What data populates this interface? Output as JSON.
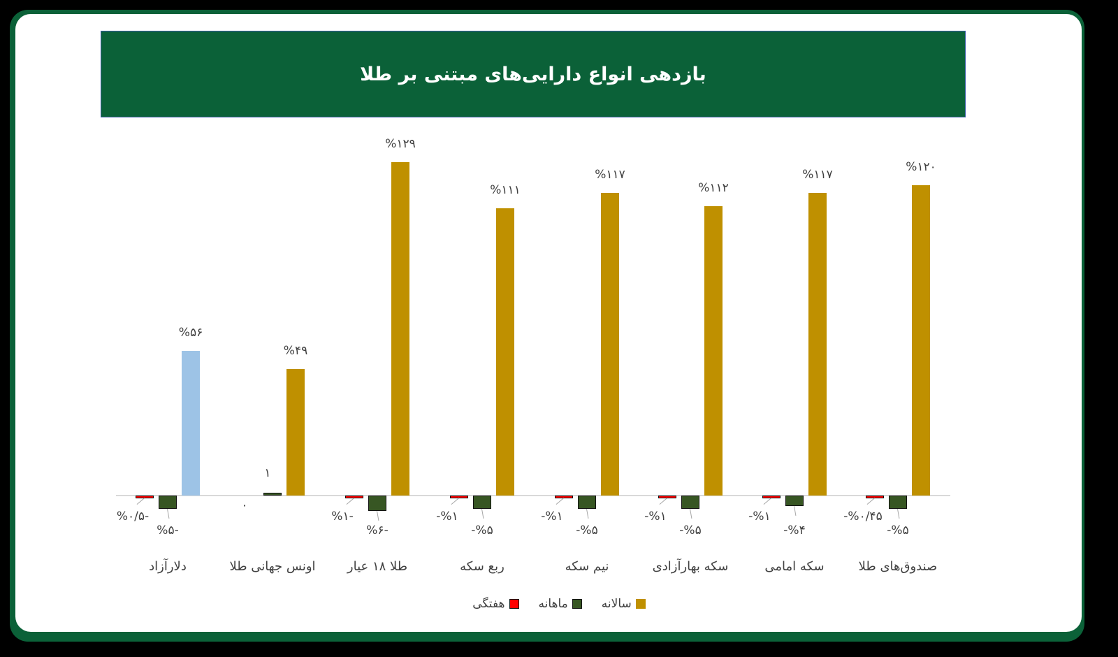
{
  "title": "بازدهی انواع دارایی‌های مبتنی بر طلا",
  "colors": {
    "frame": "#0b6138",
    "title_bg": "#0b6138",
    "weekly": "#ff0000",
    "monthly": "#375623",
    "yearly": "#bf9000",
    "dollar_yearly": "#9dc3e6"
  },
  "legend": [
    {
      "key": "yearly",
      "label": "سالانه",
      "color": "#bf9000"
    },
    {
      "key": "monthly",
      "label": "ماهانه",
      "color": "#375623"
    },
    {
      "key": "weekly",
      "label": "هفتگی",
      "color": "#ff0000"
    }
  ],
  "chart_data": {
    "type": "bar",
    "title": "بازدهی انواع دارایی‌های مبتنی بر طلا",
    "xlabel": "",
    "ylabel": "",
    "grid": false,
    "legend_position": "bottom",
    "categories": [
      "دلارآزاد",
      "اونس جهانی طلا",
      "طلا ۱۸ عیار",
      "ربع سکه",
      "نیم سکه",
      "سکه بهارآزادی",
      "سکه امامی",
      "صندوق‌های طلا"
    ],
    "series": [
      {
        "name": "هفتگی",
        "key": "weekly",
        "values": [
          -0.5,
          0,
          -1,
          -1,
          -1,
          -1,
          -1,
          -0.45
        ],
        "labels": [
          "%۰/۵-",
          "۰",
          "%۱-",
          "-%۱",
          "-%۱",
          "-%۱",
          "-%۱",
          "-%۰/۴۵"
        ]
      },
      {
        "name": "ماهانه",
        "key": "monthly",
        "values": [
          -5,
          1,
          -6,
          -5,
          -5,
          -5,
          -4,
          -5
        ],
        "labels": [
          "%۵-",
          "۱",
          "%۶-",
          "-%۵",
          "-%۵",
          "-%۵",
          "-%۴",
          "-%۵"
        ]
      },
      {
        "name": "سالانه",
        "key": "yearly",
        "values": [
          56,
          49,
          129,
          111,
          117,
          112,
          117,
          120
        ],
        "labels": [
          "%۵۶",
          "%۴۹",
          "%۱۲۹",
          "%۱۱۱",
          "%۱۱۷",
          "%۱۱۲",
          "%۱۱۷",
          "%۱۲۰"
        ]
      }
    ],
    "ylim": [
      -8,
      135
    ]
  }
}
